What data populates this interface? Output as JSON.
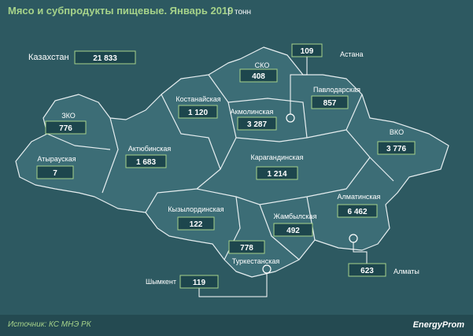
{
  "header": {
    "title": "Мясо и субпродукты пищевые. Январь 2019",
    "unit": "тонн"
  },
  "total": {
    "label": "Казахстан",
    "value": "21 833"
  },
  "regions": [
    {
      "name": "СКО",
      "value": "408"
    },
    {
      "name": "Астана",
      "value": "109"
    },
    {
      "name": "Павлодарская",
      "value": "857"
    },
    {
      "name": "Костанайская",
      "value": "1 120"
    },
    {
      "name": "Акмолинская",
      "value": "3 287"
    },
    {
      "name": "ЗКО",
      "value": "776"
    },
    {
      "name": "ВКО",
      "value": "3 776"
    },
    {
      "name": "Актюбинская",
      "value": "1 683"
    },
    {
      "name": "Карагандинская",
      "value": "1 214"
    },
    {
      "name": "Атырауская",
      "value": "7"
    },
    {
      "name": "Алматинская",
      "value": "6 462"
    },
    {
      "name": "Кызылординская",
      "value": "122"
    },
    {
      "name": "Жамбылская",
      "value": "492"
    },
    {
      "name": "Туркестанская",
      "value": "778"
    },
    {
      "name": "Алматы",
      "value": "623"
    },
    {
      "name": "Шымкент",
      "value": "119"
    }
  ],
  "footer": {
    "source": "Источник: КС МНЭ РК",
    "logo": "EnergyProm"
  }
}
